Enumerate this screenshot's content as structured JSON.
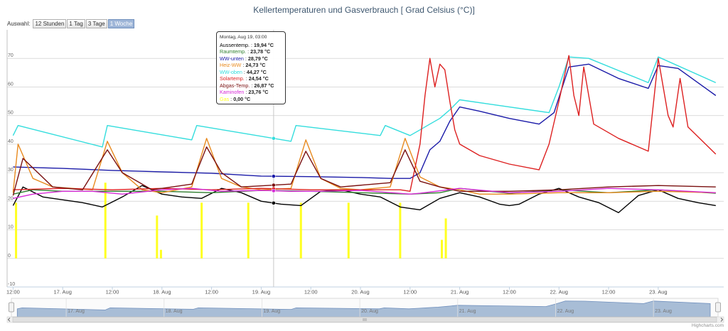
{
  "chart_data": {
    "type": "line",
    "title": "Kellertemperaturen und Gasverbrauch [ Grad Celsius (°C)]",
    "range_selector": {
      "label": "Auswahl:",
      "buttons": [
        "12 Stunden",
        "1 Tag",
        "3 Tage",
        "1 Woche"
      ],
      "selected": "1 Woche"
    },
    "y_axis": {
      "ticks": [
        -10,
        0,
        10,
        20,
        30,
        40,
        50,
        60,
        70
      ],
      "ylim": [
        -10,
        80
      ],
      "grid": true
    },
    "x_axis": {
      "ticks": [
        "12:00",
        "17. Aug",
        "12:00",
        "18. Aug",
        "12:00",
        "19. Aug",
        "12:00",
        "20. Aug",
        "12:00",
        "21. Aug",
        "12:00",
        "22. Aug",
        "12:00",
        "23. Aug"
      ],
      "range": [
        "2015-08-16 12:00",
        "2015-08-23 14:00"
      ]
    },
    "navigator": {
      "labels": [
        "17. Aug",
        "18. Aug",
        "19. Aug",
        "20. Aug",
        "21. Aug",
        "22. Aug",
        "23. Aug"
      ]
    },
    "series": [
      {
        "name": "Aussentemp.",
        "color": "#000000",
        "tooltip_value": "19,94 °C",
        "points": [
          [
            16.5,
            18.5
          ],
          [
            16.6,
            25.0
          ],
          [
            16.8,
            21.5
          ],
          [
            17.0,
            20.5
          ],
          [
            17.2,
            19.5
          ],
          [
            17.4,
            18.0
          ],
          [
            17.6,
            21.5
          ],
          [
            17.8,
            25.5
          ],
          [
            18.0,
            22.5
          ],
          [
            18.2,
            21.5
          ],
          [
            18.4,
            21.0
          ],
          [
            18.6,
            24.5
          ],
          [
            18.8,
            23.0
          ],
          [
            19.0,
            20.0
          ],
          [
            19.2,
            19.0
          ],
          [
            19.4,
            18.5
          ],
          [
            19.6,
            23.5
          ],
          [
            19.8,
            24.0
          ],
          [
            20.0,
            22.5
          ],
          [
            20.2,
            21.5
          ],
          [
            20.4,
            18.0
          ],
          [
            20.5,
            17.5
          ],
          [
            20.6,
            17.0
          ],
          [
            20.8,
            21.0
          ],
          [
            21.0,
            23.0
          ],
          [
            21.2,
            21.5
          ],
          [
            21.4,
            19.0
          ],
          [
            21.5,
            18.5
          ],
          [
            21.6,
            19.0
          ],
          [
            21.8,
            22.5
          ],
          [
            22.0,
            24.5
          ],
          [
            22.2,
            21.5
          ],
          [
            22.4,
            19.5
          ],
          [
            22.6,
            16.0
          ],
          [
            22.8,
            22.0
          ],
          [
            23.0,
            24.0
          ],
          [
            23.2,
            21.0
          ],
          [
            23.4,
            19.5
          ],
          [
            23.58,
            18.5
          ]
        ]
      },
      {
        "name": "Raumtemp.",
        "color": "#2f7f2f",
        "tooltip_value": "23,78 °C",
        "points": [
          [
            16.5,
            22.5
          ],
          [
            16.7,
            24.0
          ],
          [
            17.0,
            23.5
          ],
          [
            17.5,
            23.5
          ],
          [
            18.0,
            23.5
          ],
          [
            18.5,
            23.0
          ],
          [
            19.0,
            23.8
          ],
          [
            19.5,
            23.5
          ],
          [
            20.0,
            23.0
          ],
          [
            20.5,
            22.5
          ],
          [
            20.8,
            23.0
          ],
          [
            21.0,
            24.5
          ],
          [
            21.5,
            22.8
          ],
          [
            22.0,
            24.0
          ],
          [
            22.5,
            23.0
          ],
          [
            23.0,
            24.0
          ],
          [
            23.58,
            22.8
          ]
        ]
      },
      {
        "name": "WW-unten",
        "color": "#1a1aa8",
        "tooltip_value": "28,79 °C",
        "points": [
          [
            16.5,
            32.0
          ],
          [
            17.0,
            31.5
          ],
          [
            17.5,
            30.8
          ],
          [
            18.0,
            30.3
          ],
          [
            18.5,
            29.8
          ],
          [
            19.0,
            28.8
          ],
          [
            19.5,
            28.6
          ],
          [
            20.0,
            28.3
          ],
          [
            20.3,
            28.0
          ],
          [
            20.5,
            28.0
          ],
          [
            20.6,
            30.0
          ],
          [
            20.7,
            38.0
          ],
          [
            20.8,
            41.0
          ],
          [
            20.9,
            48.0
          ],
          [
            21.0,
            53.0
          ],
          [
            21.2,
            51.5
          ],
          [
            21.5,
            49.0
          ],
          [
            21.8,
            47.0
          ],
          [
            21.95,
            51.0
          ],
          [
            22.1,
            67.0
          ],
          [
            22.2,
            67.5
          ],
          [
            22.3,
            68.0
          ],
          [
            22.6,
            63.0
          ],
          [
            22.9,
            59.5
          ],
          [
            23.0,
            67.5
          ],
          [
            23.1,
            67.0
          ],
          [
            23.2,
            66.5
          ],
          [
            23.58,
            57.0
          ]
        ]
      },
      {
        "name": "Heiz-WW",
        "color": "#e88a1f",
        "tooltip_value": "24,73 °C",
        "points": [
          [
            16.5,
            23.0
          ],
          [
            16.55,
            40.0
          ],
          [
            16.7,
            28.0
          ],
          [
            16.9,
            25.0
          ],
          [
            17.3,
            24.0
          ],
          [
            17.45,
            41.0
          ],
          [
            17.6,
            30.0
          ],
          [
            17.8,
            24.0
          ],
          [
            18.0,
            23.0
          ],
          [
            18.3,
            25.0
          ],
          [
            18.45,
            42.0
          ],
          [
            18.6,
            28.0
          ],
          [
            18.8,
            25.0
          ],
          [
            19.0,
            24.0
          ],
          [
            19.3,
            24.5
          ],
          [
            19.45,
            41.5
          ],
          [
            19.6,
            28.0
          ],
          [
            19.8,
            24.5
          ],
          [
            20.0,
            24.0
          ],
          [
            20.3,
            25.0
          ],
          [
            20.45,
            42.0
          ],
          [
            20.6,
            28.5
          ],
          [
            20.8,
            25.0
          ],
          [
            21.0,
            24.0
          ],
          [
            21.2,
            22.5
          ],
          [
            21.5,
            22.5
          ],
          [
            22.0,
            23.0
          ],
          [
            22.5,
            23.0
          ],
          [
            23.0,
            23.5
          ],
          [
            23.58,
            23.0
          ]
        ]
      },
      {
        "name": "WW-oben",
        "color": "#33dddd",
        "tooltip_value": "44,27 °C",
        "points": [
          [
            16.5,
            43.0
          ],
          [
            16.55,
            46.5
          ],
          [
            17.4,
            39.0
          ],
          [
            17.45,
            46.5
          ],
          [
            18.3,
            41.5
          ],
          [
            18.35,
            46.5
          ],
          [
            19.3,
            41.0
          ],
          [
            19.35,
            46.5
          ],
          [
            20.2,
            43.0
          ],
          [
            20.25,
            46.5
          ],
          [
            20.5,
            43.0
          ],
          [
            20.6,
            45.0
          ],
          [
            20.7,
            47.0
          ],
          [
            20.8,
            49.0
          ],
          [
            20.9,
            52.0
          ],
          [
            21.0,
            55.5
          ],
          [
            21.3,
            54.0
          ],
          [
            21.9,
            51.0
          ],
          [
            22.0,
            60.0
          ],
          [
            22.1,
            70.5
          ],
          [
            22.3,
            70.0
          ],
          [
            22.9,
            61.5
          ],
          [
            23.0,
            70.5
          ],
          [
            23.58,
            61.5
          ]
        ]
      },
      {
        "name": "Solartemp.",
        "color": "#dd2020",
        "tooltip_value": "24,54 °C",
        "points": [
          [
            16.5,
            24.0
          ],
          [
            17.0,
            24.5
          ],
          [
            17.5,
            24.0
          ],
          [
            18.0,
            24.5
          ],
          [
            18.5,
            24.0
          ],
          [
            19.0,
            24.5
          ],
          [
            19.5,
            24.0
          ],
          [
            20.0,
            24.0
          ],
          [
            20.4,
            24.0
          ],
          [
            20.5,
            23.5
          ],
          [
            20.6,
            40.0
          ],
          [
            20.65,
            57.0
          ],
          [
            20.7,
            70.0
          ],
          [
            20.75,
            60.0
          ],
          [
            20.8,
            68.0
          ],
          [
            20.85,
            66.0
          ],
          [
            20.9,
            55.0
          ],
          [
            20.95,
            45.0
          ],
          [
            21.0,
            40.0
          ],
          [
            21.2,
            36.0
          ],
          [
            21.5,
            33.0
          ],
          [
            21.8,
            31.0
          ],
          [
            21.9,
            40.0
          ],
          [
            22.0,
            55.0
          ],
          [
            22.1,
            71.0
          ],
          [
            22.15,
            57.0
          ],
          [
            22.2,
            50.0
          ],
          [
            22.25,
            67.0
          ],
          [
            22.35,
            47.0
          ],
          [
            22.6,
            42.0
          ],
          [
            22.9,
            37.5
          ],
          [
            23.0,
            70.0
          ],
          [
            23.1,
            50.0
          ],
          [
            23.15,
            46.0
          ],
          [
            23.22,
            63.0
          ],
          [
            23.3,
            46.0
          ],
          [
            23.58,
            36.5
          ]
        ]
      },
      {
        "name": "Abgas-Temp.",
        "color": "#7a1010",
        "tooltip_value": "26,87 °C",
        "points": [
          [
            16.5,
            22.0
          ],
          [
            16.6,
            35.0
          ],
          [
            16.9,
            25.0
          ],
          [
            17.2,
            24.0
          ],
          [
            17.45,
            38.0
          ],
          [
            17.6,
            30.0
          ],
          [
            17.9,
            24.0
          ],
          [
            18.3,
            26.0
          ],
          [
            18.45,
            39.0
          ],
          [
            18.6,
            30.0
          ],
          [
            18.8,
            25.0
          ],
          [
            19.3,
            26.0
          ],
          [
            19.45,
            37.5
          ],
          [
            19.6,
            28.0
          ],
          [
            19.8,
            25.0
          ],
          [
            20.3,
            26.5
          ],
          [
            20.45,
            38.0
          ],
          [
            20.6,
            27.0
          ],
          [
            20.8,
            25.0
          ],
          [
            21.0,
            23.5
          ],
          [
            21.5,
            23.5
          ],
          [
            22.0,
            24.0
          ],
          [
            22.5,
            25.0
          ],
          [
            23.0,
            25.5
          ],
          [
            23.58,
            25.0
          ]
        ]
      },
      {
        "name": "Kaminofen",
        "color": "#d62ad6",
        "tooltip_value": "23,76 °C",
        "points": [
          [
            16.5,
            21.0
          ],
          [
            16.7,
            22.5
          ],
          [
            17.0,
            23.5
          ],
          [
            17.3,
            23.5
          ],
          [
            17.6,
            22.5
          ],
          [
            18.0,
            24.0
          ],
          [
            18.3,
            24.5
          ],
          [
            18.6,
            23.5
          ],
          [
            19.0,
            23.8
          ],
          [
            19.3,
            23.5
          ],
          [
            19.6,
            23.5
          ],
          [
            20.0,
            23.8
          ],
          [
            20.5,
            22.5
          ],
          [
            20.6,
            22.8
          ],
          [
            21.0,
            24.5
          ],
          [
            21.5,
            23.0
          ],
          [
            22.0,
            23.5
          ],
          [
            22.5,
            24.5
          ],
          [
            23.0,
            24.0
          ],
          [
            23.58,
            23.0
          ]
        ]
      },
      {
        "name": "Gas",
        "color": "#ffff22",
        "tooltip_value": "0,00 °C",
        "bars": [
          [
            16.53,
            19.5
          ],
          [
            17.43,
            26.5
          ],
          [
            17.95,
            15.0
          ],
          [
            17.99,
            3.0
          ],
          [
            18.4,
            19.5
          ],
          [
            18.87,
            19.5
          ],
          [
            19.4,
            19.5
          ],
          [
            19.88,
            19.5
          ],
          [
            20.4,
            19.5
          ],
          [
            20.82,
            6.5
          ],
          [
            20.86,
            14.0
          ]
        ]
      }
    ],
    "tooltip": {
      "title": "Montag, Aug 19, 03:00",
      "x": 19.125
    },
    "credits": "Highcharts.com"
  }
}
